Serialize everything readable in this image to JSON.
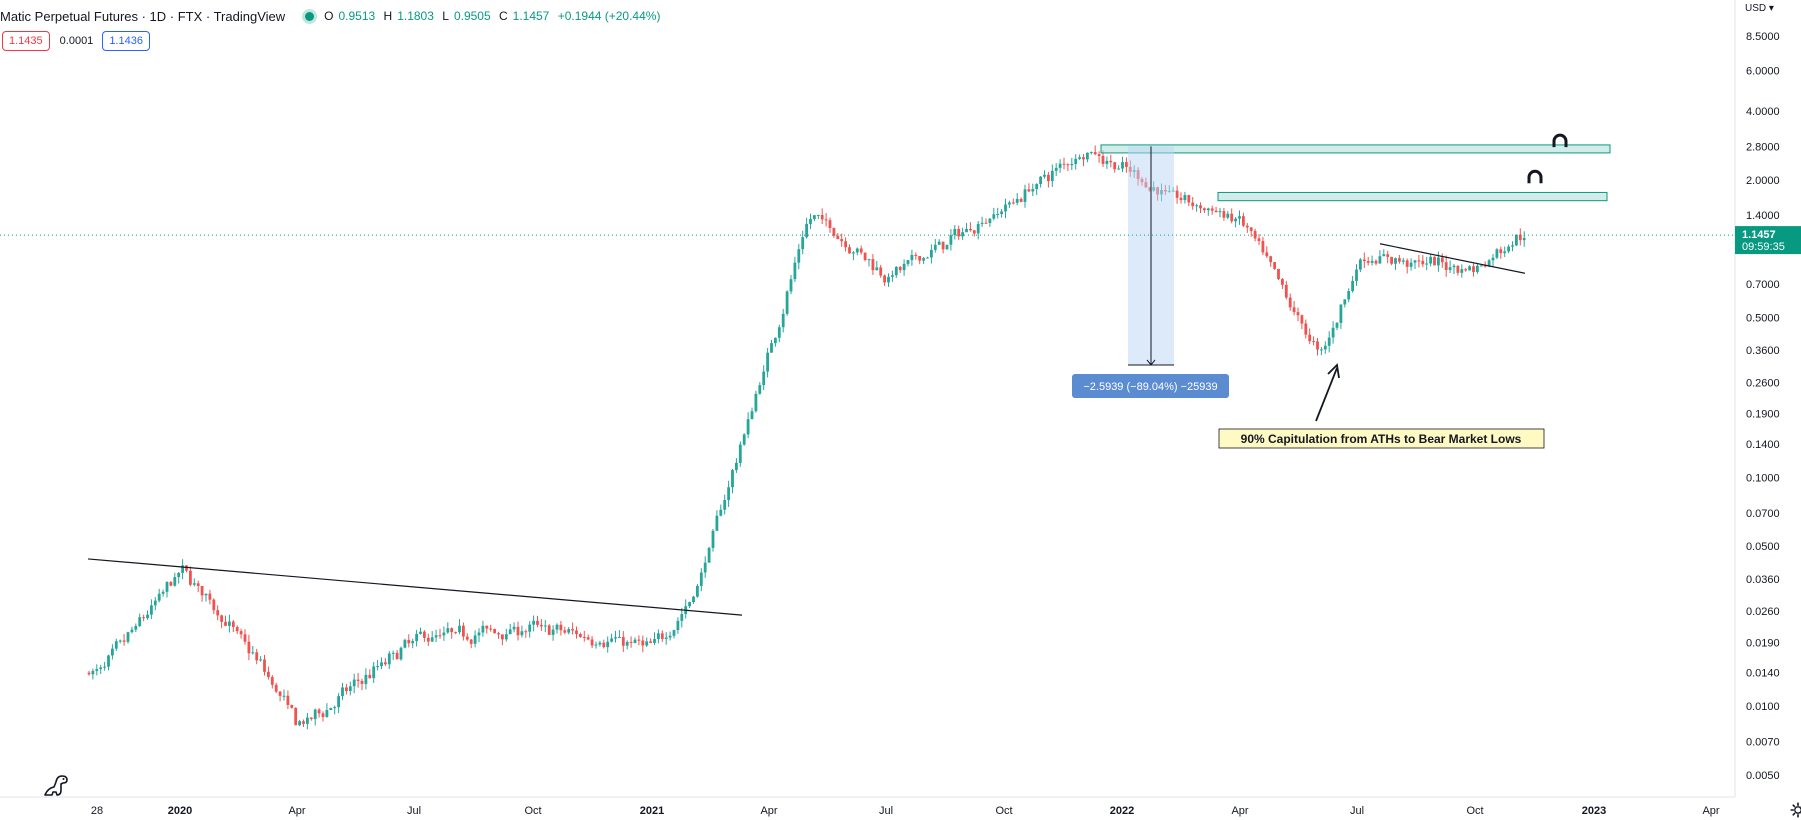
{
  "header": {
    "title": "Matic Perpetual Futures · 1D · FTX · TradingView",
    "open_label": "O",
    "open": "0.9513",
    "high_label": "H",
    "high": "1.1803",
    "low_label": "L",
    "low": "0.9505",
    "close_label": "C",
    "close": "1.1457",
    "change": "+0.1944 (+20.44%)",
    "status_color": "#089981"
  },
  "quote": {
    "bid": "1.1435",
    "spread": "0.0001",
    "ask": "1.1436"
  },
  "price_axis": {
    "currency": "USD",
    "ticks": [
      "8.5000",
      "6.0000",
      "4.0000",
      "2.8000",
      "2.0000",
      "1.4000",
      "1.1457",
      "0.7000",
      "0.5000",
      "0.3600",
      "0.2600",
      "0.1900",
      "0.1400",
      "0.1000",
      "0.0700",
      "0.0500",
      "0.0360",
      "0.0260",
      "0.0190",
      "0.0140",
      "0.0100",
      "0.0070",
      "0.0050"
    ],
    "last_price_label": "1.1457",
    "countdown": "09:59:35"
  },
  "time_axis": {
    "ticks": [
      "28",
      "2020",
      "Apr",
      "Jul",
      "Oct",
      "2021",
      "Apr",
      "Jul",
      "Oct",
      "2022",
      "Apr",
      "Jul",
      "Oct",
      "2023",
      "Apr"
    ]
  },
  "annotations": {
    "measure_label": "−2.5939 (−89.04%) −25939",
    "callout_text": "90% Capitulation from ATHs to Bear Market Lows"
  },
  "colors": {
    "up": "#26a69a",
    "down": "#ef5350",
    "accent": "#089981",
    "zone_fill": "#b2dfdb",
    "zone_stroke": "#089981",
    "measure": "#5b8bd1"
  },
  "icons": {
    "magnet": "magnet-icon",
    "settings": "gear-icon",
    "logo": "dinosaur-logo-icon"
  },
  "chart_data": {
    "type": "candlestick",
    "scale": "log",
    "ylim": [
      0.005,
      8.5
    ],
    "x": [
      "2019-12",
      "2020-01",
      "2020-03",
      "2020-04",
      "2020-07",
      "2020-10",
      "2021-01",
      "2021-02",
      "2021-04",
      "2021-05",
      "2021-07",
      "2021-10",
      "2021-12",
      "2022-02",
      "2022-04",
      "2022-06",
      "2022-07",
      "2022-10",
      "2022-11"
    ],
    "close": [
      0.014,
      0.04,
      0.015,
      0.008,
      0.02,
      0.022,
      0.018,
      0.03,
      0.39,
      1.45,
      0.75,
      1.55,
      2.75,
      1.75,
      1.3,
      0.33,
      0.92,
      0.82,
      1.1457
    ]
  }
}
